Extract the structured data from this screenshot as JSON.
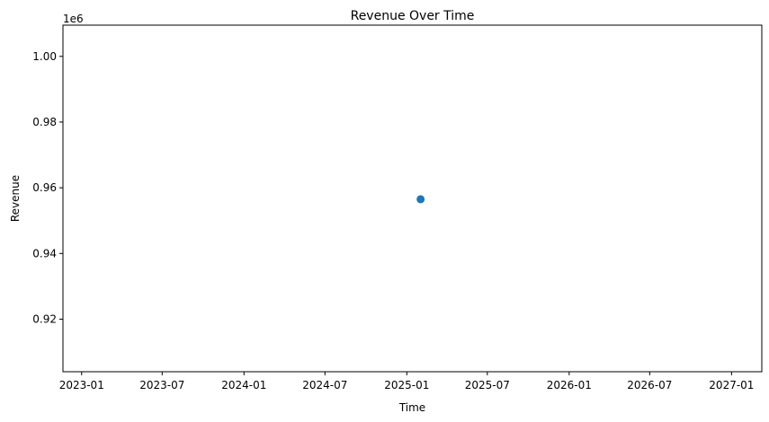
{
  "chart_data": {
    "type": "scatter",
    "title": "Revenue Over Time",
    "xlabel": "Time",
    "ylabel": "Revenue",
    "y_offset_label": "1e6",
    "x_axis_type": "date",
    "xlim": [
      "2022-11-20",
      "2027-03-10"
    ],
    "ylim": [
      904000,
      1009500
    ],
    "x_ticks": [
      {
        "value": "2023-01-01",
        "label": "2023-01"
      },
      {
        "value": "2023-07-01",
        "label": "2023-07"
      },
      {
        "value": "2024-01-01",
        "label": "2024-01"
      },
      {
        "value": "2024-07-01",
        "label": "2024-07"
      },
      {
        "value": "2025-01-01",
        "label": "2025-01"
      },
      {
        "value": "2025-07-01",
        "label": "2025-07"
      },
      {
        "value": "2026-01-01",
        "label": "2026-01"
      },
      {
        "value": "2026-07-01",
        "label": "2026-07"
      },
      {
        "value": "2027-01-01",
        "label": "2027-01"
      }
    ],
    "y_ticks": [
      {
        "value": 920000,
        "label": "0.92"
      },
      {
        "value": 940000,
        "label": "0.94"
      },
      {
        "value": 960000,
        "label": "0.96"
      },
      {
        "value": 980000,
        "label": "0.98"
      },
      {
        "value": 1000000,
        "label": "1.00"
      }
    ],
    "series": [
      {
        "points": [
          {
            "x": "2025-02-01",
            "y": 956500
          }
        ]
      }
    ],
    "grid": false,
    "colors": {
      "marker": "#1f77b4",
      "axes": "#000000",
      "background": "#ffffff"
    }
  }
}
